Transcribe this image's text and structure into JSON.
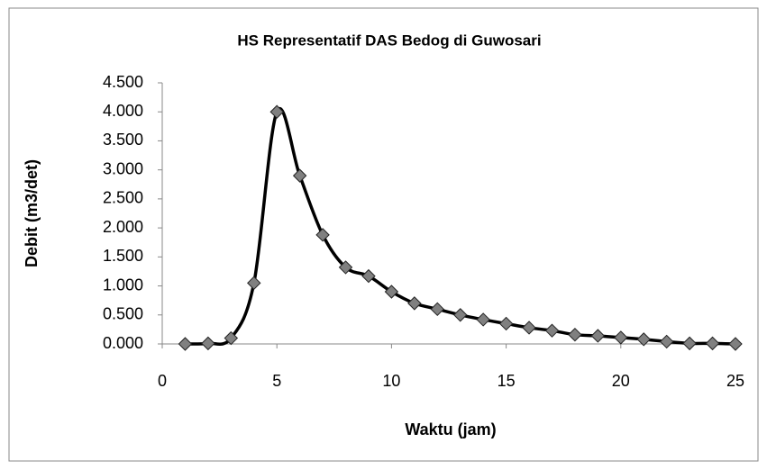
{
  "chart_data": {
    "type": "scatter-line",
    "title": "HS Representatif DAS Bedog di Guwosari",
    "x_label": "Waktu (jam)",
    "y_label": "Debit (m3/det)",
    "x": [
      1,
      2,
      3,
      4,
      5,
      6,
      7,
      8,
      9,
      10,
      11,
      12,
      13,
      14,
      15,
      16,
      17,
      18,
      19,
      20,
      21,
      22,
      23,
      24,
      25
    ],
    "series": [
      {
        "name": "Debit",
        "color": "#000000",
        "marker_color": "#808080",
        "values": [
          0,
          0.01,
          0.1,
          1.05,
          4.0,
          2.9,
          1.88,
          1.32,
          1.17,
          0.9,
          0.7,
          0.6,
          0.5,
          0.42,
          0.35,
          0.28,
          0.23,
          0.16,
          0.14,
          0.11,
          0.08,
          0.04,
          0.01,
          0.01,
          0
        ]
      }
    ],
    "xlim": [
      0,
      25
    ],
    "xticks": [
      0,
      5,
      10,
      15,
      20,
      25
    ],
    "ylim": [
      0,
      4.5
    ],
    "yticks": [
      {
        "value": 0,
        "label": "0.000"
      },
      {
        "value": 0.5,
        "label": "0.500"
      },
      {
        "value": 1,
        "label": "1.000"
      },
      {
        "value": 1.5,
        "label": "1.500"
      },
      {
        "value": 2,
        "label": "2.000"
      },
      {
        "value": 2.5,
        "label": "2.500"
      },
      {
        "value": 3,
        "label": "3.000"
      },
      {
        "value": 3.5,
        "label": "3.500"
      },
      {
        "value": 4,
        "label": "4.000"
      },
      {
        "value": 4.5,
        "label": "4.500"
      }
    ],
    "smooth": true,
    "grid": false
  }
}
